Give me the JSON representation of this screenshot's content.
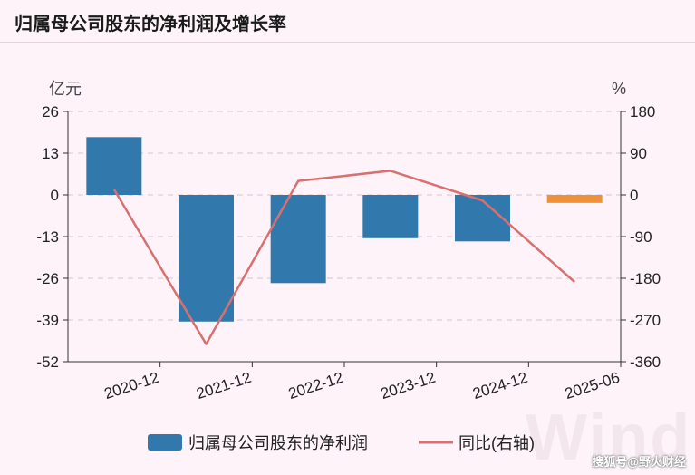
{
  "title": "归属母公司股东的净利润及增长率",
  "watermark": "搜狐号@野火财经",
  "brand_mark": "Wind",
  "colors": {
    "bar": "#3179ad",
    "bar_last": "#f0913a",
    "line": "#d87070",
    "axis": "#333333",
    "grid": "#d9c4ce"
  },
  "chart_data": {
    "type": "bar",
    "categories": [
      "2020-12",
      "2021-12",
      "2022-12",
      "2023-12",
      "2024-12",
      "2025-06"
    ],
    "series": [
      {
        "name": "归属母公司股东的净利润",
        "type": "bar",
        "axis": "left",
        "values": [
          18,
          -39.5,
          -27.5,
          -13.5,
          -14.5,
          -2.5
        ]
      },
      {
        "name": "同比(右轴)",
        "type": "line",
        "axis": "right",
        "values": [
          12,
          -322,
          30,
          52,
          -12,
          -188
        ]
      }
    ],
    "y_left": {
      "unit": "亿元",
      "ticks": [
        26,
        13,
        0,
        -13,
        -26,
        -39,
        -52
      ],
      "range": [
        -52,
        26
      ]
    },
    "y_right": {
      "unit": "%",
      "ticks": [
        180,
        90,
        0,
        -90,
        -180,
        -270,
        -360
      ],
      "range": [
        -360,
        180
      ]
    },
    "grid": true,
    "legend_position": "bottom"
  }
}
